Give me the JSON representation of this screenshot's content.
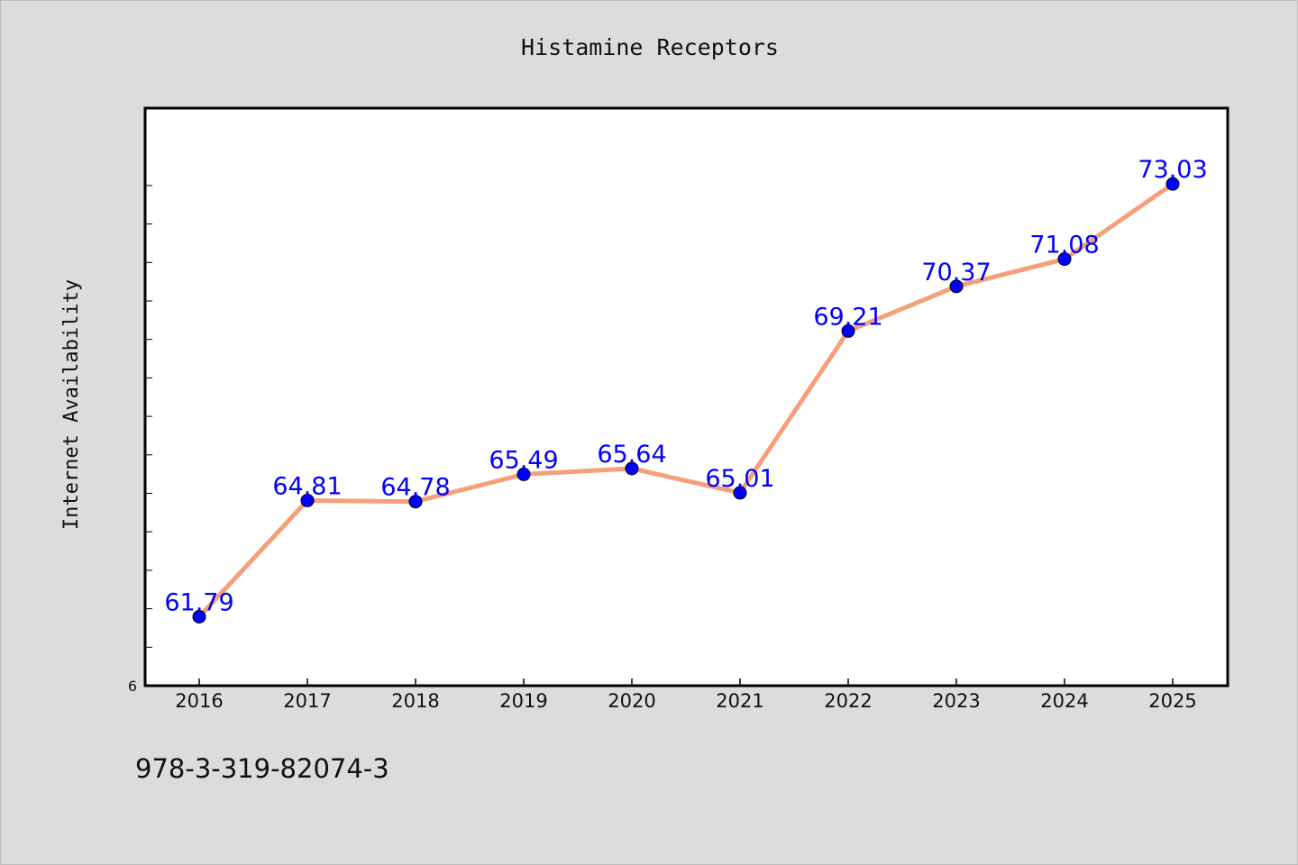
{
  "chart_data": {
    "type": "line",
    "title": "Histamine Receptors",
    "xlabel": "",
    "ylabel": "Internet Availability",
    "categories": [
      "2016",
      "2017",
      "2018",
      "2019",
      "2020",
      "2021",
      "2022",
      "2023",
      "2024",
      "2025"
    ],
    "series": [
      {
        "values": [
          61.79,
          64.81,
          64.78,
          65.49,
          65.64,
          65.01,
          69.21,
          70.37,
          71.08,
          73.03
        ],
        "line_color": "#f4a07a",
        "marker_color": "#0000ff",
        "label_color": "#0000ff"
      }
    ],
    "ylim": [
      60,
      75
    ],
    "y_tick_label": "6",
    "grid": false,
    "legend": "none"
  },
  "footer": {
    "identifier": "978-3-319-82074-3"
  }
}
